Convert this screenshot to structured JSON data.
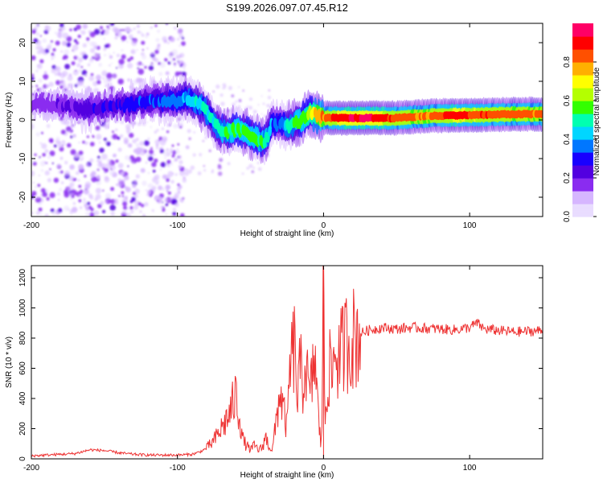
{
  "title": "S199.2026.097.07.45.R12",
  "chart_data": [
    {
      "type": "heatmap",
      "title": "S199.2026.097.07.45.R12",
      "xlabel": "Height of straight line (km)",
      "ylabel": "Frequency (Hz)",
      "xlim": [
        -200,
        150
      ],
      "ylim": [
        -25,
        25
      ],
      "xticks": [
        -200,
        -100,
        0,
        100
      ],
      "yticks": [
        -20,
        -10,
        0,
        10,
        20
      ],
      "colorbar": {
        "label": "Normalized spectral amplitude",
        "ticks": [
          0.0,
          0.2,
          0.4,
          0.6,
          0.8
        ],
        "range": [
          0,
          1
        ],
        "colors": [
          "#e9ddff",
          "#d6b6ff",
          "#8a2cf0",
          "#5200e0",
          "#1800ff",
          "#0077ff",
          "#00d6ff",
          "#00ffb0",
          "#33ff00",
          "#b4ff00",
          "#ffff00",
          "#ffb000",
          "#ff5000",
          "#ff0000",
          "#ff0066"
        ]
      },
      "ridge": {
        "x": [
          -200,
          -180,
          -170,
          -160,
          -150,
          -140,
          -130,
          -120,
          -110,
          -100,
          -95,
          -90,
          -85,
          -80,
          -75,
          -70,
          -65,
          -60,
          -55,
          -50,
          -45,
          -40,
          -35,
          -30,
          -25,
          -20,
          -15,
          -10,
          -5,
          0,
          10,
          30,
          50,
          70,
          90,
          110,
          130,
          150
        ],
        "y": [
          4,
          4,
          3,
          3,
          3.5,
          4,
          4,
          5,
          5,
          5,
          5.5,
          5,
          4,
          2,
          -1,
          -3,
          -3,
          -2.5,
          -3,
          -4,
          -5,
          -5.5,
          -1,
          -1,
          -1.5,
          -1,
          0,
          2,
          1,
          0.5,
          0.5,
          0.5,
          0.5,
          1,
          1.2,
          1.3,
          1.5,
          1.5
        ],
        "amplitude": [
          0.15,
          0.2,
          0.22,
          0.25,
          0.25,
          0.28,
          0.3,
          0.33,
          0.35,
          0.38,
          0.42,
          0.45,
          0.45,
          0.48,
          0.48,
          0.5,
          0.52,
          0.55,
          0.55,
          0.55,
          0.55,
          0.55,
          0.35,
          0.35,
          0.45,
          0.55,
          0.55,
          0.65,
          0.75,
          0.8,
          0.92,
          0.95,
          0.85,
          0.8,
          0.9,
          0.85,
          0.82,
          0.82
        ]
      }
    },
    {
      "type": "line",
      "xlabel": "Height of straight line (km)",
      "ylabel": "SNR (10 * v/v)",
      "xlim": [
        -200,
        150
      ],
      "ylim": [
        0,
        1280
      ],
      "xticks": [
        -200,
        -100,
        0,
        100
      ],
      "yticks": [
        0,
        200,
        400,
        600,
        800,
        1000,
        1200
      ],
      "series": [
        {
          "name": "SNR",
          "color": "#ee3333",
          "x": [
            -200,
            -180,
            -170,
            -160,
            -150,
            -140,
            -130,
            -120,
            -110,
            -100,
            -90,
            -85,
            -80,
            -75,
            -70,
            -65,
            -60,
            -57,
            -55,
            -52,
            -50,
            -47,
            -45,
            -42,
            -40,
            -37,
            -35,
            -33,
            -30,
            -27,
            -25,
            -23,
            -20,
            -18,
            -16,
            -14,
            -12,
            -10,
            -8,
            -6,
            -4,
            -2,
            -1,
            0,
            1,
            2,
            4,
            6,
            8,
            10,
            12,
            15,
            18,
            20,
            25,
            30,
            35,
            40,
            50,
            60,
            70,
            80,
            90,
            100,
            105,
            110,
            120,
            130,
            140,
            150
          ],
          "y": [
            20,
            30,
            35,
            60,
            55,
            40,
            30,
            25,
            25,
            25,
            30,
            45,
            70,
            120,
            200,
            280,
            420,
            250,
            120,
            80,
            60,
            90,
            60,
            70,
            150,
            80,
            60,
            200,
            450,
            300,
            200,
            600,
            750,
            400,
            600,
            500,
            650,
            400,
            500,
            700,
            350,
            100,
            300,
            1280,
            200,
            450,
            600,
            550,
            750,
            650,
            700,
            780,
            780,
            800,
            830,
            850,
            860,
            870,
            860,
            870,
            865,
            860,
            855,
            870,
            900,
            860,
            850,
            840,
            845,
            850
          ]
        }
      ]
    }
  ]
}
